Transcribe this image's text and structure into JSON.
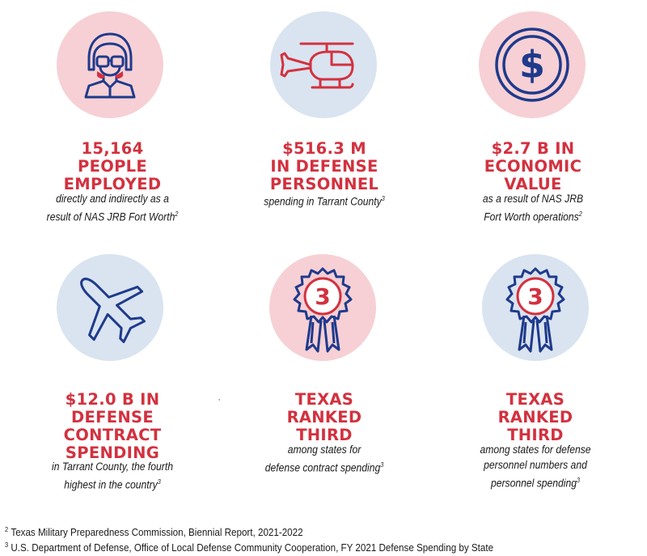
{
  "colors": {
    "pink": "#f6d0d4",
    "blue": "#d9e4f0",
    "red": "#d3313f",
    "navy": "#1f3a8c"
  },
  "stats": [
    {
      "icon": "pilot-icon",
      "stat_lines": [
        "15,164",
        "PEOPLE",
        "EMPLOYED"
      ],
      "desc_lines": [
        "directly and indirectly as a",
        "result of NAS JRB Fort Worth"
      ],
      "footnote_ref": "2"
    },
    {
      "icon": "helicopter-icon",
      "stat_lines": [
        "$516.3 M",
        "IN DEFENSE",
        "PERSONNEL"
      ],
      "desc_lines": [
        "spending in Tarrant County"
      ],
      "footnote_ref": "3"
    },
    {
      "icon": "dollar-coin-icon",
      "stat_lines": [
        "$2.7 B IN",
        "ECONOMIC",
        "VALUE"
      ],
      "desc_lines": [
        "as a result of NAS JRB",
        "Fort Worth operations"
      ],
      "footnote_ref": "2"
    },
    {
      "icon": "airplane-icon",
      "stat_lines": [
        "$12.0 B IN",
        "DEFENSE",
        "CONTRACT",
        "SPENDING"
      ],
      "desc_lines": [
        "in Tarrant County, the fourth",
        "highest in the country"
      ],
      "footnote_ref": "3"
    },
    {
      "icon": "ribbon-award-icon",
      "award_number": "3",
      "stat_lines": [
        "TEXAS",
        "RANKED",
        "THIRD"
      ],
      "desc_lines": [
        "among states for",
        "defense contract spending"
      ],
      "footnote_ref": "3"
    },
    {
      "icon": "ribbon-award-icon",
      "award_number": "3",
      "stat_lines": [
        "TEXAS",
        "RANKED",
        "THIRD"
      ],
      "desc_lines": [
        "among states for defense",
        "personnel numbers and",
        "personnel spending"
      ],
      "footnote_ref": "3"
    }
  ],
  "stray_mark": "’",
  "footnotes": [
    {
      "num": "2",
      "text": "Texas Military Preparedness Commission, Biennial Report, 2021-2022"
    },
    {
      "num": "3",
      "text": "U.S. Department of Defense, Office of Local Defense Community Cooperation, FY 2021 Defense Spending by State"
    }
  ]
}
